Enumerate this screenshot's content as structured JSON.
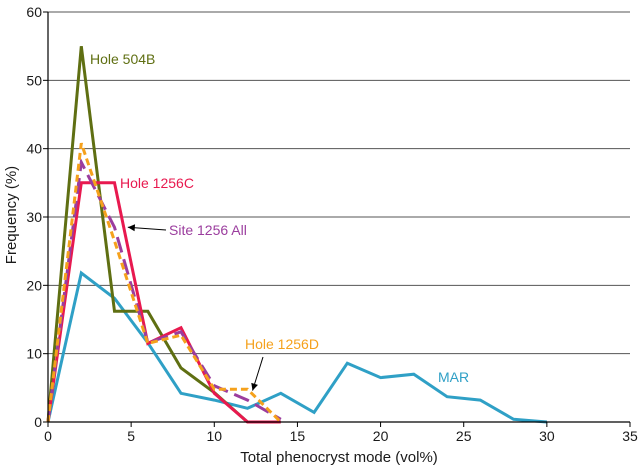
{
  "chart_data": {
    "type": "line",
    "xlabel": "Total phenocryst mode (vol%)",
    "ylabel": "Frequency (%)",
    "xlim": [
      0,
      35
    ],
    "ylim": [
      0,
      60
    ],
    "x_ticks": [
      0,
      5,
      10,
      15,
      20,
      25,
      30,
      35
    ],
    "y_ticks": [
      0,
      10,
      20,
      30,
      40,
      50,
      60
    ],
    "grid": "horizontal",
    "series": [
      {
        "name": "MAR",
        "color": "#2fa0c6",
        "style": "solid",
        "points": [
          [
            0,
            0
          ],
          [
            2,
            21.8
          ],
          [
            4,
            18.1
          ],
          [
            6,
            11.6
          ],
          [
            8,
            4.2
          ],
          [
            10,
            3.2
          ],
          [
            12,
            2.0
          ],
          [
            14,
            4.2
          ],
          [
            16,
            1.4
          ],
          [
            18,
            8.6
          ],
          [
            20,
            6.5
          ],
          [
            22,
            7.0
          ],
          [
            24,
            3.7
          ],
          [
            26,
            3.2
          ],
          [
            28,
            0.4
          ],
          [
            30,
            0
          ]
        ]
      },
      {
        "name": "Hole 504B",
        "color": "#5f6f12",
        "style": "solid",
        "points": [
          [
            0,
            0
          ],
          [
            2,
            55
          ],
          [
            4,
            16.2
          ],
          [
            6,
            16.2
          ],
          [
            8,
            7.9
          ],
          [
            10,
            4.3
          ],
          [
            12,
            0
          ]
        ]
      },
      {
        "name": "Hole 1256C",
        "color": "#e8194f",
        "style": "solid",
        "points": [
          [
            0,
            0
          ],
          [
            2,
            35
          ],
          [
            4,
            35
          ],
          [
            6,
            11.5
          ],
          [
            8,
            13.8
          ],
          [
            10,
            4.2
          ],
          [
            12,
            0
          ],
          [
            14,
            0
          ]
        ]
      },
      {
        "name": "Site 1256 All",
        "color": "#9b3d9e",
        "style": "longdash",
        "points": [
          [
            0,
            0
          ],
          [
            2,
            38
          ],
          [
            4,
            28.5
          ],
          [
            6,
            11.6
          ],
          [
            8,
            13.2
          ],
          [
            10,
            5.3
          ],
          [
            12,
            3.2
          ],
          [
            14,
            0.4
          ]
        ]
      },
      {
        "name": "Hole 1256D",
        "color": "#f5a11c",
        "style": "shortdash",
        "points": [
          [
            0,
            0
          ],
          [
            2,
            40.8
          ],
          [
            4,
            26.5
          ],
          [
            6,
            11.5
          ],
          [
            8,
            12.7
          ],
          [
            10,
            4.8
          ],
          [
            12,
            4.8
          ],
          [
            14,
            0
          ]
        ]
      }
    ],
    "annotations": [
      {
        "text": "Hole 504B",
        "color": "#5f6f12",
        "arrow": false
      },
      {
        "text": "Hole 1256C",
        "color": "#e8194f",
        "arrow": false
      },
      {
        "text": "Site 1256 All",
        "color": "#9b3d9e",
        "arrow": true,
        "arrow_to": [
          4.8,
          28.5
        ]
      },
      {
        "text": "Hole 1256D",
        "color": "#f5a11c",
        "arrow": true,
        "arrow_to": [
          12.3,
          4.6
        ]
      },
      {
        "text": "MAR",
        "color": "#2fa0c6",
        "arrow": false
      }
    ]
  }
}
